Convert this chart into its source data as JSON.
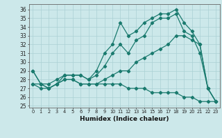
{
  "xlabel": "Humidex (Indice chaleur)",
  "ylabel": "",
  "bg_color": "#cce8ea",
  "grid_color": "#aad0d4",
  "line_color": "#1a7a6e",
  "xlim": [
    -0.5,
    23.5
  ],
  "ylim": [
    24.8,
    36.6
  ],
  "yticks": [
    25,
    26,
    27,
    28,
    29,
    30,
    31,
    32,
    33,
    34,
    35,
    36
  ],
  "xticks": [
    0,
    1,
    2,
    3,
    4,
    5,
    6,
    7,
    8,
    9,
    10,
    11,
    12,
    13,
    14,
    15,
    16,
    17,
    18,
    19,
    20,
    21,
    22,
    23
  ],
  "line1": [
    29,
    27.5,
    27,
    27.5,
    28.5,
    28.5,
    28.5,
    28,
    29,
    31,
    32,
    34.5,
    33,
    33.5,
    34.5,
    35,
    35.5,
    35.5,
    36,
    34.5,
    33.5,
    32,
    27,
    25.5
  ],
  "line2": [
    27.5,
    27.5,
    27.5,
    28,
    28.5,
    28.5,
    28.5,
    28,
    28.5,
    29.5,
    31,
    32,
    31,
    32.5,
    33,
    34.5,
    35,
    35,
    35.5,
    33.5,
    33,
    31,
    27,
    25.5
  ],
  "line3": [
    27.5,
    27,
    27,
    27.5,
    28,
    28,
    27.5,
    27.5,
    27.5,
    28,
    28.5,
    29,
    29,
    30,
    30.5,
    31,
    31.5,
    32,
    33,
    33,
    32.5,
    32,
    27,
    25.5
  ],
  "line4": [
    29,
    27.5,
    27,
    27.5,
    28,
    28,
    27.5,
    27.5,
    27.5,
    27.5,
    27.5,
    27.5,
    27,
    27,
    27,
    26.5,
    26.5,
    26.5,
    26.5,
    26,
    26,
    25.5,
    25.5,
    25.5
  ]
}
